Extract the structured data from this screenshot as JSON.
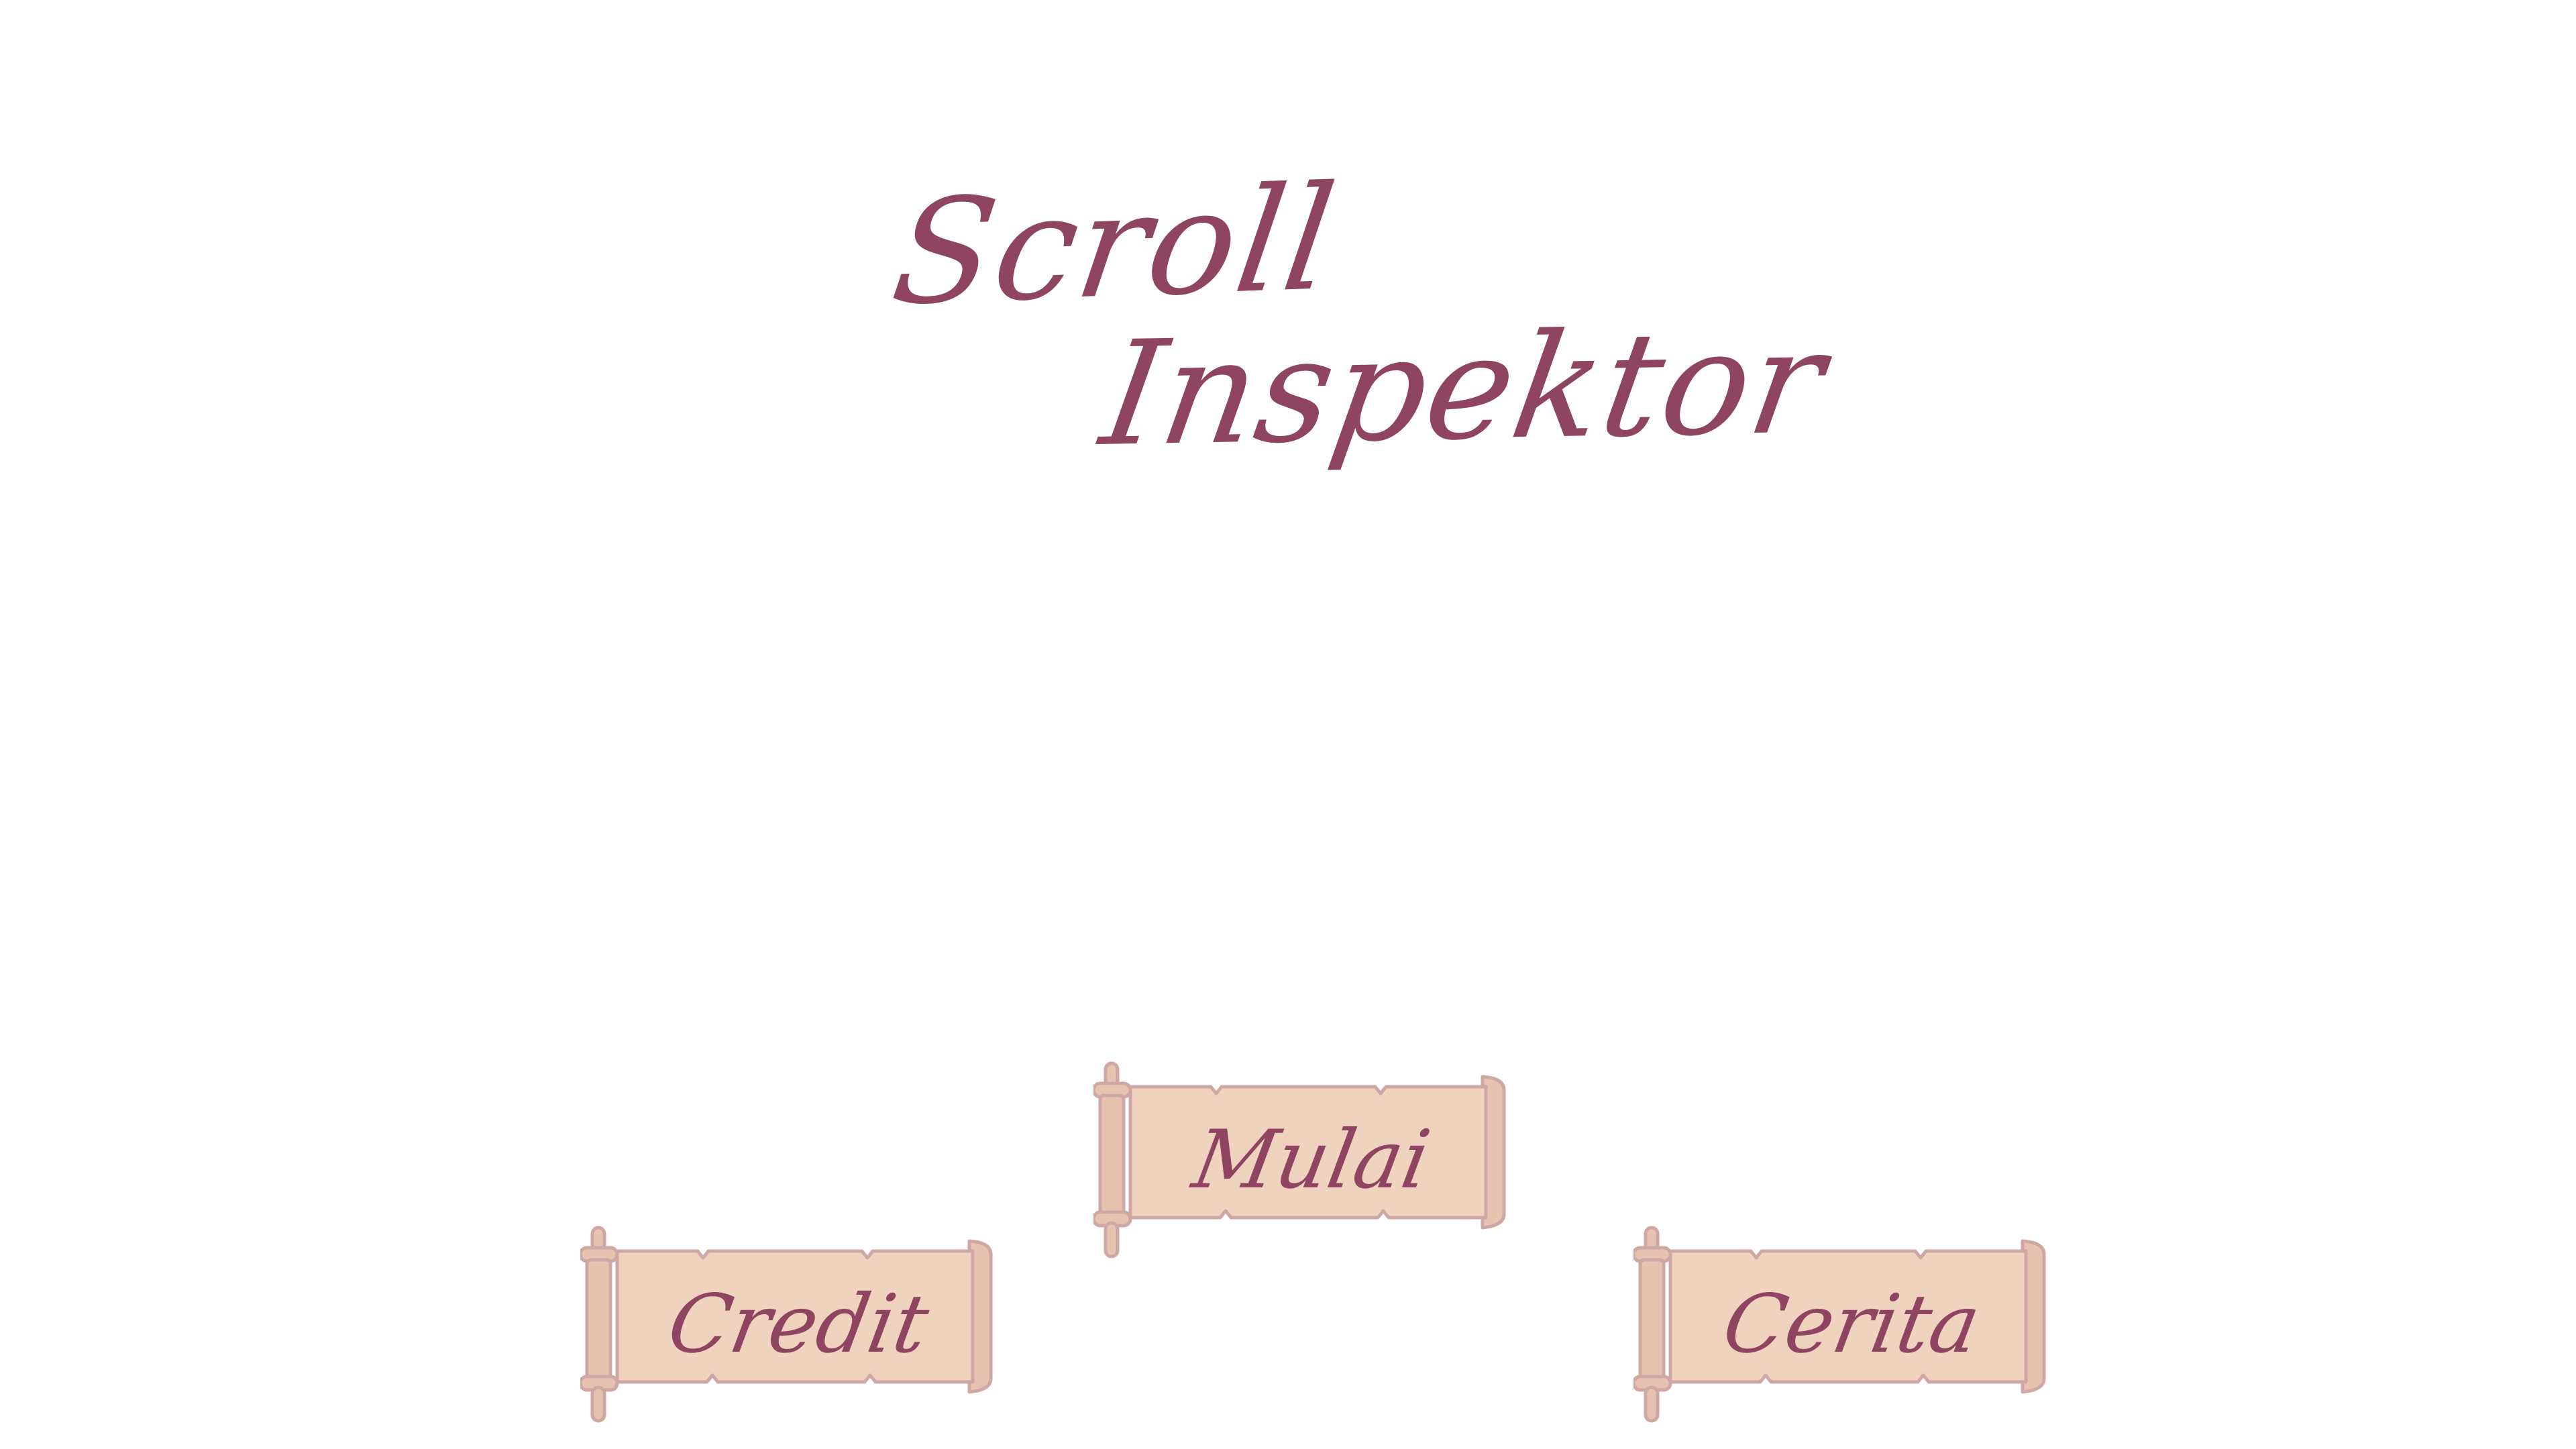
{
  "game": {
    "title_line_1": "Scroll",
    "title_line_2": "Inspektor"
  },
  "menu": {
    "start_label": "Mulai",
    "credit_label": "Credit",
    "story_label": "Cerita"
  },
  "colors": {
    "background": "#ffffff",
    "title_text": "#8f4462",
    "scroll_parchment": "#f0d3be",
    "scroll_outline": "#cfa8a6",
    "scroll_rod": "#e8c2b0"
  }
}
